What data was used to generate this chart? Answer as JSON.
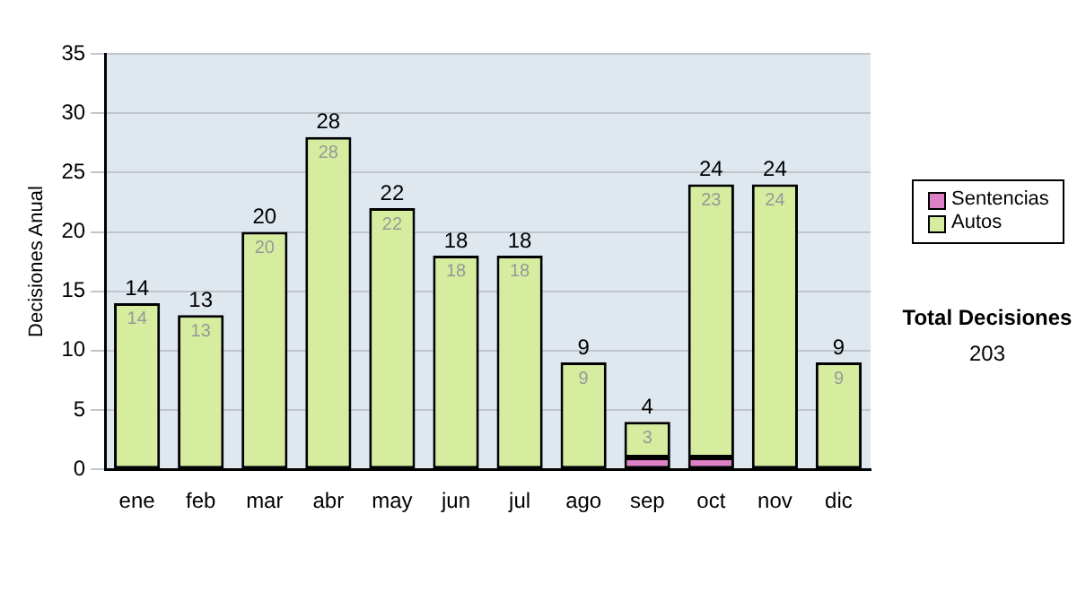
{
  "chart_data": {
    "type": "bar",
    "stacked": true,
    "ylabel": "Decisiones Anual",
    "categories": [
      "ene",
      "feb",
      "mar",
      "abr",
      "may",
      "jun",
      "jul",
      "ago",
      "sep",
      "oct",
      "nov",
      "dic"
    ],
    "series": [
      {
        "name": "Sentencias",
        "color": "#dd80c8",
        "values": [
          0,
          0,
          0,
          0,
          0,
          0,
          0,
          0,
          1,
          1,
          0,
          0
        ]
      },
      {
        "name": "Autos",
        "color": "#d6ec9e",
        "values": [
          14,
          13,
          20,
          28,
          22,
          18,
          18,
          9,
          3,
          23,
          24,
          9
        ],
        "value_labels": [
          "14",
          "13",
          "20",
          "28",
          "22",
          "18",
          "18",
          "9",
          "3",
          "23",
          "24",
          "9"
        ]
      }
    ],
    "totals": [
      "14",
      "13",
      "20",
      "28",
      "22",
      "18",
      "18",
      "9",
      "4",
      "24",
      "24",
      "9"
    ],
    "ylim": [
      0,
      35
    ],
    "yticks": [
      0,
      5,
      10,
      15,
      20,
      25,
      30,
      35
    ],
    "grid": "y",
    "legend": "right",
    "annotations": [
      "Total Decisiones",
      "203"
    ]
  }
}
